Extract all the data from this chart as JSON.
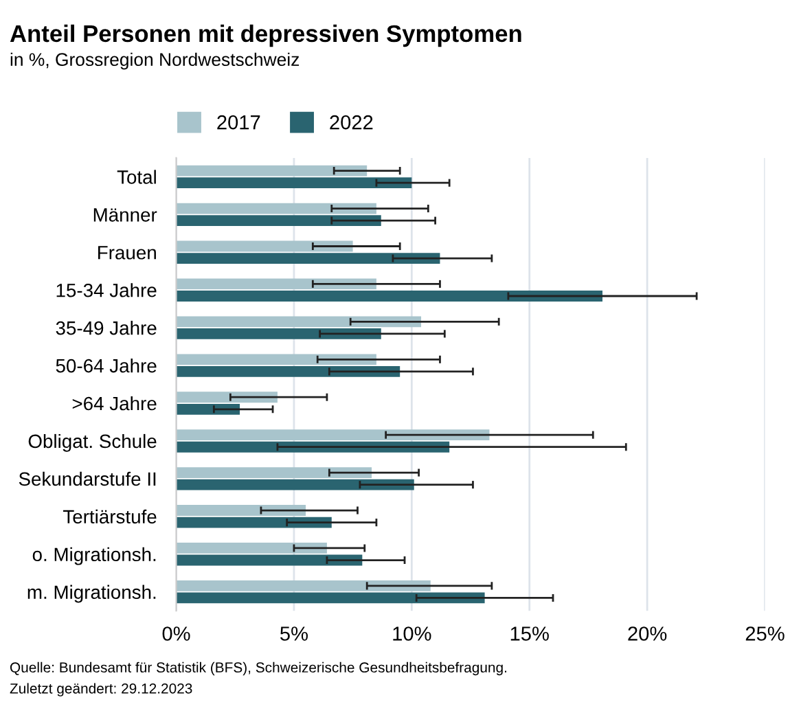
{
  "chart_data": {
    "type": "bar",
    "orientation": "horizontal",
    "title": "Anteil Personen mit depressiven Symptomen",
    "subtitle": "in %, Grossregion Nordwestschweiz",
    "categories": [
      "Total",
      "Männer",
      "Frauen",
      "15-34 Jahre",
      "35-49 Jahre",
      "50-64 Jahre",
      ">64 Jahre",
      "Obligat. Schule",
      "Sekundarstufe II",
      "Tertiärstufe",
      "o. Migrationsh.",
      "m. Migrationsh."
    ],
    "series": [
      {
        "name": "2017",
        "color": "#a8c4cc",
        "values": [
          8.1,
          8.5,
          7.5,
          8.5,
          10.4,
          8.5,
          4.3,
          13.3,
          8.3,
          5.5,
          6.4,
          10.8
        ],
        "errors": [
          [
            6.7,
            9.5
          ],
          [
            6.6,
            10.7
          ],
          [
            5.8,
            9.5
          ],
          [
            5.8,
            11.2
          ],
          [
            7.4,
            13.7
          ],
          [
            6.0,
            11.2
          ],
          [
            2.3,
            6.4
          ],
          [
            8.9,
            17.7
          ],
          [
            6.5,
            10.3
          ],
          [
            3.6,
            7.7
          ],
          [
            5.0,
            8.0
          ],
          [
            8.1,
            13.4
          ]
        ]
      },
      {
        "name": "2022",
        "color": "#2a6470",
        "values": [
          10.0,
          8.7,
          11.2,
          18.1,
          8.7,
          9.5,
          2.7,
          11.6,
          10.1,
          6.6,
          7.9,
          13.1
        ],
        "errors": [
          [
            8.5,
            11.6
          ],
          [
            6.6,
            11.0
          ],
          [
            9.2,
            13.4
          ],
          [
            14.1,
            22.1
          ],
          [
            6.1,
            11.4
          ],
          [
            6.5,
            12.6
          ],
          [
            1.6,
            4.1
          ],
          [
            4.3,
            19.1
          ],
          [
            7.8,
            12.6
          ],
          [
            4.7,
            8.5
          ],
          [
            6.4,
            9.7
          ],
          [
            10.2,
            16.0
          ]
        ]
      }
    ],
    "xlim": [
      0,
      25
    ],
    "xticks": [
      {
        "value": 0,
        "label": "0%"
      },
      {
        "value": 5,
        "label": "5%"
      },
      {
        "value": 10,
        "label": "10%"
      },
      {
        "value": 15,
        "label": "15%"
      },
      {
        "value": 20,
        "label": "20%"
      },
      {
        "value": 25,
        "label": "25%"
      }
    ],
    "grid": "x",
    "legend": "top left",
    "annotations": [
      "Quelle: Bundesamt für Statistik (BFS), Schweizerische Gesundheitsbefragung.",
      "Zuletzt geändert: 29.12.2023"
    ]
  }
}
